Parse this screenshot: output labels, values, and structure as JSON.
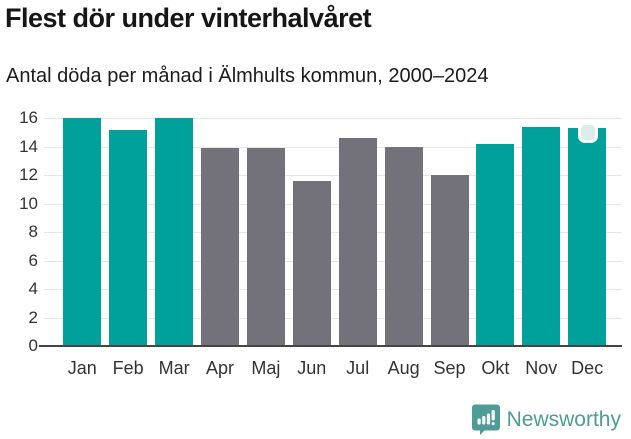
{
  "header": {
    "title": "Flest dör under vinterhalvåret",
    "subtitle": "Antal döda per månad i Älmhults kommun, 2000–2024"
  },
  "chart_data": {
    "type": "bar",
    "categories": [
      "Jan",
      "Feb",
      "Mar",
      "Apr",
      "Maj",
      "Jun",
      "Jul",
      "Aug",
      "Sep",
      "Okt",
      "Nov",
      "Dec"
    ],
    "values": [
      15.9,
      15.1,
      15.9,
      13.8,
      13.8,
      11.5,
      14.5,
      13.9,
      11.9,
      14.1,
      15.3,
      15.2
    ],
    "title": "Flest dör under vinterhalvåret",
    "subtitle": "Antal döda per månad i Älmhults kommun, 2000–2024",
    "xlabel": "",
    "ylabel": "",
    "ylim": [
      0,
      16
    ],
    "ytick_step": 2,
    "grid": true,
    "legend": "none",
    "highlight_categories": [
      "Jan",
      "Feb",
      "Mar",
      "Okt",
      "Nov",
      "Dec"
    ],
    "marker_on": "Dec"
  },
  "colors": {
    "bar_highlight": "#00a09b",
    "bar_default": "#737179",
    "axis_text": "#333333",
    "gridline": "#e7e7e7",
    "baseline": "#454545",
    "brand_teal": "#4e9c95",
    "handle_fill": "#dceeea"
  },
  "footer": {
    "brand": "Newsworthy"
  }
}
